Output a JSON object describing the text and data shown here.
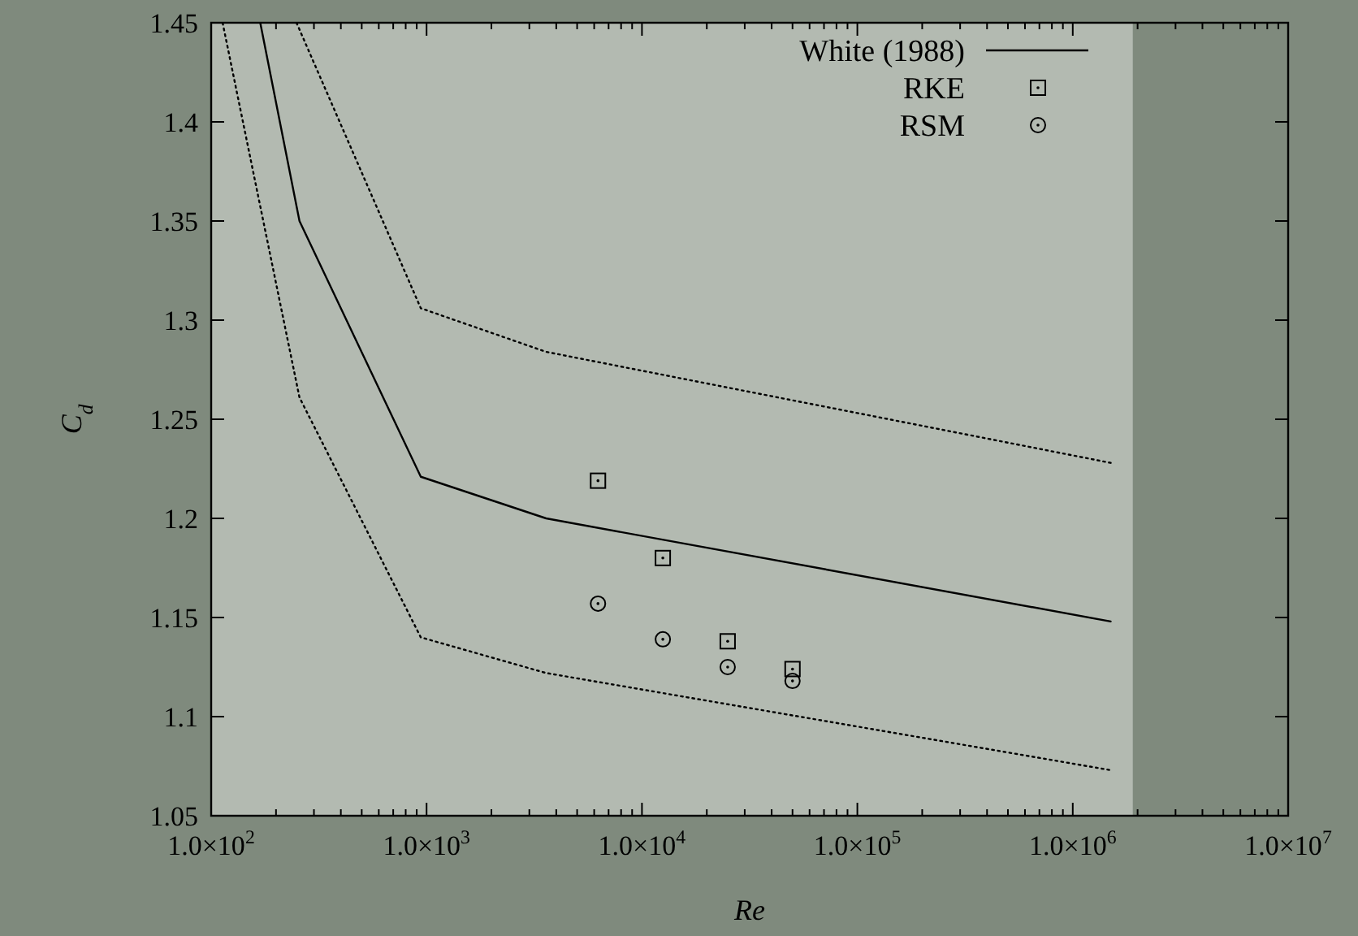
{
  "chart_data": {
    "type": "line",
    "xlabel": "Re",
    "ylabel": "C$_{d}$",
    "log": "x",
    "xlim": [
      100,
      10000000
    ],
    "ylim": [
      1.05,
      1.45
    ],
    "xticks": [
      {
        "value": 100,
        "label": "1.0×10$^{2}$"
      },
      {
        "value": 1000,
        "label": "1.0×10$^{3}$"
      },
      {
        "value": 10000,
        "label": "1.0×10$^{4}$"
      },
      {
        "value": 100000,
        "label": "1.0×10$^{5}$"
      },
      {
        "value": 1000000,
        "label": "1.0×10$^{6}$"
      },
      {
        "value": 10000000,
        "label": "1.0×10$^{7}$"
      }
    ],
    "yticks": [
      1.05,
      1.1,
      1.15,
      1.2,
      1.25,
      1.3,
      1.35,
      1.4,
      1.45
    ],
    "legend": "top right",
    "grid": false,
    "bands": [
      {
        "axis": "x",
        "from": 100,
        "to": 1900000,
        "color": "#b3bab1"
      }
    ],
    "series": [
      {
        "name": "White (1988)",
        "color": "#000000",
        "line_style": "solid",
        "marker": "none",
        "x": [
          169,
          257,
          940,
          3590,
          1500000
        ],
        "values": [
          1.45,
          1.35,
          1.221,
          1.2,
          1.148
        ]
      },
      {
        "color": "#000000",
        "line_style": "dotted",
        "marker": "none",
        "x": [
          249,
          940,
          3590,
          1500000
        ],
        "values": [
          1.45,
          1.306,
          1.284,
          1.228
        ]
      },
      {
        "color": "#000000",
        "line_style": "dotted",
        "marker": "none",
        "x": [
          113,
          257,
          940,
          3590,
          1500000
        ],
        "values": [
          1.45,
          1.261,
          1.14,
          1.122,
          1.073
        ]
      },
      {
        "name": "RKE",
        "type": "scatter",
        "color": "#000000",
        "marker": "square",
        "x": [
          6250,
          12500,
          25000,
          50000
        ],
        "values": [
          1.219,
          1.18,
          1.138,
          1.124
        ]
      },
      {
        "name": "RSM",
        "type": "scatter",
        "color": "#000000",
        "marker": "circle",
        "x": [
          6250,
          12500,
          25000,
          50000
        ],
        "values": [
          1.157,
          1.139,
          1.125,
          1.118
        ]
      }
    ]
  }
}
